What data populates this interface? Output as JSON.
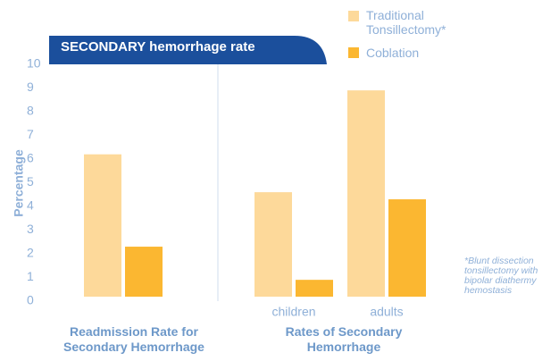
{
  "chart_data": {
    "type": "bar",
    "title": "SECONDARY hemorrhage rate",
    "ylabel": "Percentage",
    "categories": [
      null,
      "children",
      "adults"
    ],
    "group_labels": [
      "Readmission Rate for Secondary Hemorrhage",
      "Rates of Secondary Hemorrhage"
    ],
    "series": [
      {
        "name": "Traditional Tonsillectomy*",
        "color": "#fdd99a",
        "values": [
          6.2,
          4.6,
          8.9
        ]
      },
      {
        "name": "Coblation",
        "color": "#fbb731",
        "values": [
          2.3,
          0.9,
          4.3
        ]
      }
    ],
    "ylim": [
      0,
      10
    ],
    "yticks": [
      0,
      1,
      2,
      3,
      4,
      5,
      6,
      7,
      8,
      9,
      10
    ],
    "note": "*Blunt dissection tonsillectomy with bipolar diathermy hemostasis"
  }
}
